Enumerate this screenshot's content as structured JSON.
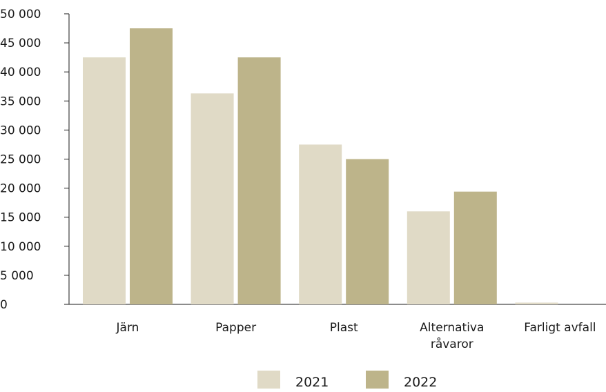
{
  "chart_data": {
    "type": "bar",
    "title": "",
    "xlabel": "",
    "ylabel": "",
    "categories": [
      "Järn",
      "Papper",
      "Plast",
      "Alternativa råvaror",
      "Farligt avfall"
    ],
    "category_label_lines": [
      [
        "Järn"
      ],
      [
        "Papper"
      ],
      [
        "Plast"
      ],
      [
        "Alternativa",
        "råvaror"
      ],
      [
        "Farligt avfall"
      ]
    ],
    "series": [
      {
        "name": "2021",
        "color": "#e0dac6",
        "values": [
          42500,
          36300,
          27500,
          16000,
          300
        ]
      },
      {
        "name": "2022",
        "color": "#bdb48a",
        "values": [
          47500,
          42500,
          25000,
          19400,
          0
        ]
      }
    ],
    "ylim": [
      0,
      50000
    ],
    "yticks": [
      0,
      5000,
      10000,
      15000,
      20000,
      25000,
      30000,
      35000,
      40000,
      45000,
      50000
    ],
    "ytick_labels": [
      "0",
      "5 000",
      "10 000",
      "15 000",
      "20 000",
      "25 000",
      "30 000",
      "35 000",
      "40 000",
      "45 000",
      "50 000"
    ],
    "grid": false,
    "legend_position": "bottom-center"
  }
}
